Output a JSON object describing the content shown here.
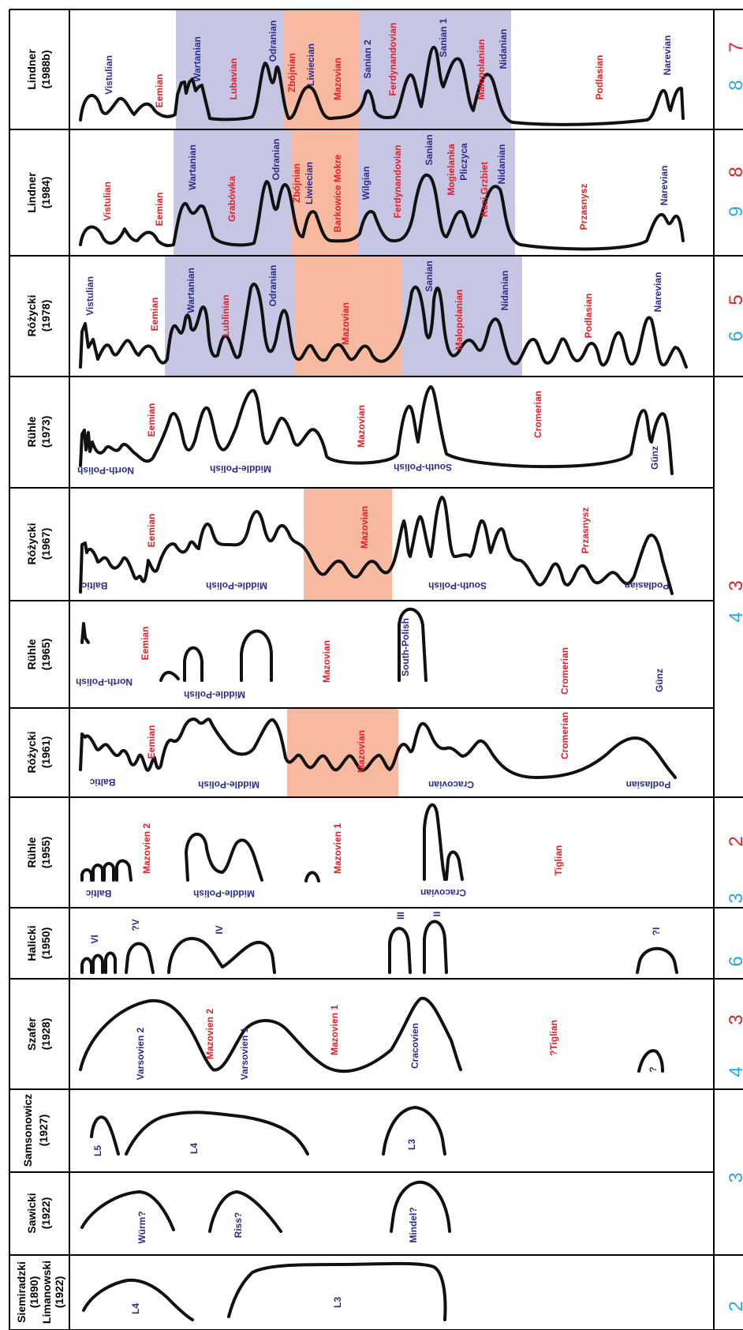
{
  "rows": [
    {
      "author": "Lindner",
      "year": "(1988b)",
      "labels": [
        "Vistulian",
        "Eemian",
        "Wartanian",
        "Lubavian",
        "Odranian",
        "Zbójnian",
        "Liwiecian",
        "Mazovian",
        "Sanian 2",
        "Ferdynandovian",
        "Sanian 1",
        "Malopolanian",
        "Nidanian",
        "Podlasian",
        "Narevian"
      ],
      "numbers": [
        "8",
        "7"
      ]
    },
    {
      "author": "Lindner",
      "year": "(1984)",
      "labels": [
        "Vistulian",
        "Eemian",
        "Wartanian",
        "Grabówka",
        "Odranian",
        "Zbójnian",
        "Liwiecian",
        "Barkowice Mokre",
        "Wilgian",
        "Ferdynandovian",
        "Sanian",
        "Mogielanka",
        "Pliczyca",
        "Kozi Grzbiet",
        "Nidanian",
        "Przasnysz",
        "Narevian"
      ],
      "numbers": [
        "9",
        "8"
      ]
    },
    {
      "author": "Różycki",
      "year": "(1978)",
      "labels": [
        "Vistulian",
        "Eemian",
        "Wartanian",
        "Lublinian",
        "Odranian",
        "Mazovian",
        "Sanian",
        "Malopolanian",
        "Nidanian",
        "Podlasian",
        "Narevian"
      ],
      "numbers": [
        "6",
        "5"
      ]
    },
    {
      "author": "Rühle",
      "year": "(1973)",
      "labels": [
        "North-Polish",
        "Eemian",
        "Middle-Polish",
        "Mazovian",
        "South-Polish",
        "Cromerian",
        "Günz"
      ],
      "numbers": []
    },
    {
      "author": "Różycki",
      "year": "(1967)",
      "labels": [
        "Baltic",
        "Eemian",
        "Middle-Polish",
        "Mazovian",
        "South-Polish",
        "Przasnysz",
        "Podlasian"
      ],
      "numbers": []
    },
    {
      "author": "Rühle",
      "year": "(1965)",
      "labels": [
        "North-Polish",
        "Eemian",
        "Middle-Polish",
        "Mazovian",
        "South-Polish",
        "Cromerian",
        "Günz"
      ],
      "numbers": [
        "4",
        "3"
      ]
    },
    {
      "author": "Różycki",
      "year": "(1961)",
      "labels": [
        "Baltic",
        "Eemian",
        "Middle-Polish",
        "Mazovian",
        "Cracovian",
        "Cromerian",
        "Podlasian"
      ],
      "numbers": []
    },
    {
      "author": "Rühle",
      "year": "(1955)",
      "labels": [
        "Baltic",
        "Mazovien 2",
        "Middle-Polish",
        "Mazovien 1",
        "Cracovian",
        "Tiglian"
      ],
      "numbers": [
        "3",
        "2"
      ]
    },
    {
      "author": "Halicki",
      "year": "(1950)",
      "labels": [
        "VI",
        "?V",
        "IV",
        "III",
        "II",
        "?I"
      ],
      "numbers": [
        "6"
      ]
    },
    {
      "author": "Szafer",
      "year": "(1928)",
      "labels": [
        "Varsovien 2",
        "Mazovien 2",
        "Varsovien 1",
        "Mazovien 1",
        "Cracovien",
        "?Tiglian",
        "?"
      ],
      "numbers": [
        "4",
        "3"
      ]
    },
    {
      "author": "Samsonowicz",
      "year": "(1927)",
      "labels": [
        "L5",
        "L4",
        "L3"
      ],
      "numbers": []
    },
    {
      "author": "Sawicki",
      "year": "(1922)",
      "labels": [
        "Würm?",
        "Riss?",
        "Mindel?"
      ],
      "numbers": [
        "3"
      ]
    },
    {
      "author": "Siemiradzki",
      "year": "(1890)",
      "author2": "Limanowski",
      "year2": "(1922)",
      "labels": [
        "L4",
        "L3"
      ],
      "numbers": [
        "2"
      ]
    }
  ],
  "colors": {
    "interglacial_band": "#f7b9a0",
    "glacial_band": "#c6c6e4",
    "blue_text": "#2b2b8a",
    "red_text": "#e3202a",
    "cyan_number": "#2aa9e0"
  }
}
